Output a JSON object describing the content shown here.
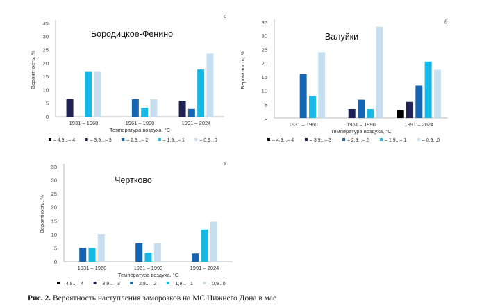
{
  "caption": {
    "label": "Рис. 2.",
    "text": "Вероятность наступления заморозков на МС Нижнего Дона в мае"
  },
  "chart_data": [
    {
      "type": "bar",
      "panel_letter": "а",
      "title": "Бородицкое-Фенино",
      "xlabel": "Температура воздуха, °С",
      "ylabel": "Вероятность, %",
      "ylim": [
        0,
        35
      ],
      "yticks": [
        0,
        5,
        10,
        15,
        20,
        25,
        30,
        35
      ],
      "grid": false,
      "legend": "bottom",
      "categories": [
        "1931 – 1960",
        "1961 – 1990",
        "1991 – 2024"
      ],
      "series": [
        {
          "name": "– 4,9...– 4",
          "color": "#000000",
          "values": [
            null,
            null,
            null
          ]
        },
        {
          "name": "– 3,9...– 3",
          "color": "#1f2153",
          "values": [
            6.5,
            null,
            5.9
          ]
        },
        {
          "name": "– 2,9...– 2",
          "color": "#1565b0",
          "values": [
            null,
            6.5,
            2.9
          ]
        },
        {
          "name": "– 1,9...– 1",
          "color": "#17b8e6",
          "values": [
            16.7,
            3.3,
            17.6
          ]
        },
        {
          "name": "– 0,9...0",
          "color": "#c5dff0",
          "values": [
            16.7,
            6.5,
            23.5
          ]
        }
      ]
    },
    {
      "type": "bar",
      "panel_letter": "б",
      "title": "Валуйки",
      "xlabel": "Температура воздуха, °С",
      "ylabel": "Вероятность, %",
      "ylim": [
        0,
        35
      ],
      "yticks": [
        0,
        5,
        10,
        15,
        20,
        25,
        30,
        35
      ],
      "grid": false,
      "legend": "bottom",
      "categories": [
        "1931 – 1960",
        "1961 – 1990",
        "1991 – 2024"
      ],
      "series": [
        {
          "name": "– 4,9...– 4",
          "color": "#000000",
          "values": [
            null,
            null,
            2.9
          ]
        },
        {
          "name": "– 3,9...– 3",
          "color": "#1f2153",
          "values": [
            null,
            3.3,
            5.9
          ]
        },
        {
          "name": "– 2,9...– 2",
          "color": "#1565b0",
          "values": [
            16.0,
            6.7,
            11.8
          ]
        },
        {
          "name": "– 1,9...– 1",
          "color": "#17b8e6",
          "values": [
            8.0,
            3.3,
            20.6
          ]
        },
        {
          "name": "– 0,9...0",
          "color": "#c5dff0",
          "values": [
            24.0,
            33.3,
            17.6
          ]
        }
      ]
    },
    {
      "type": "bar",
      "panel_letter": "в",
      "title": "Чертково",
      "xlabel": "Температура воздуха, °С",
      "ylabel": "Вероятность, %",
      "ylim": [
        0,
        35
      ],
      "yticks": [
        0,
        5,
        10,
        15,
        20,
        25,
        30,
        35
      ],
      "grid": false,
      "legend": "bottom",
      "categories": [
        "1931 – 1960",
        "1961 – 1990",
        "1991 – 2024"
      ],
      "series": [
        {
          "name": "– 4,9...– 4",
          "color": "#000000",
          "values": [
            null,
            null,
            null
          ]
        },
        {
          "name": "– 3,9...– 3",
          "color": "#1f2153",
          "values": [
            null,
            null,
            null
          ]
        },
        {
          "name": "– 2,9...– 2",
          "color": "#1565b0",
          "values": [
            5.0,
            6.7,
            3.0
          ]
        },
        {
          "name": "– 1,9...– 1",
          "color": "#17b8e6",
          "values": [
            5.0,
            3.3,
            11.8
          ]
        },
        {
          "name": "– 0,9...0",
          "color": "#c5dff0",
          "values": [
            10.0,
            6.7,
            14.7
          ]
        }
      ]
    }
  ]
}
